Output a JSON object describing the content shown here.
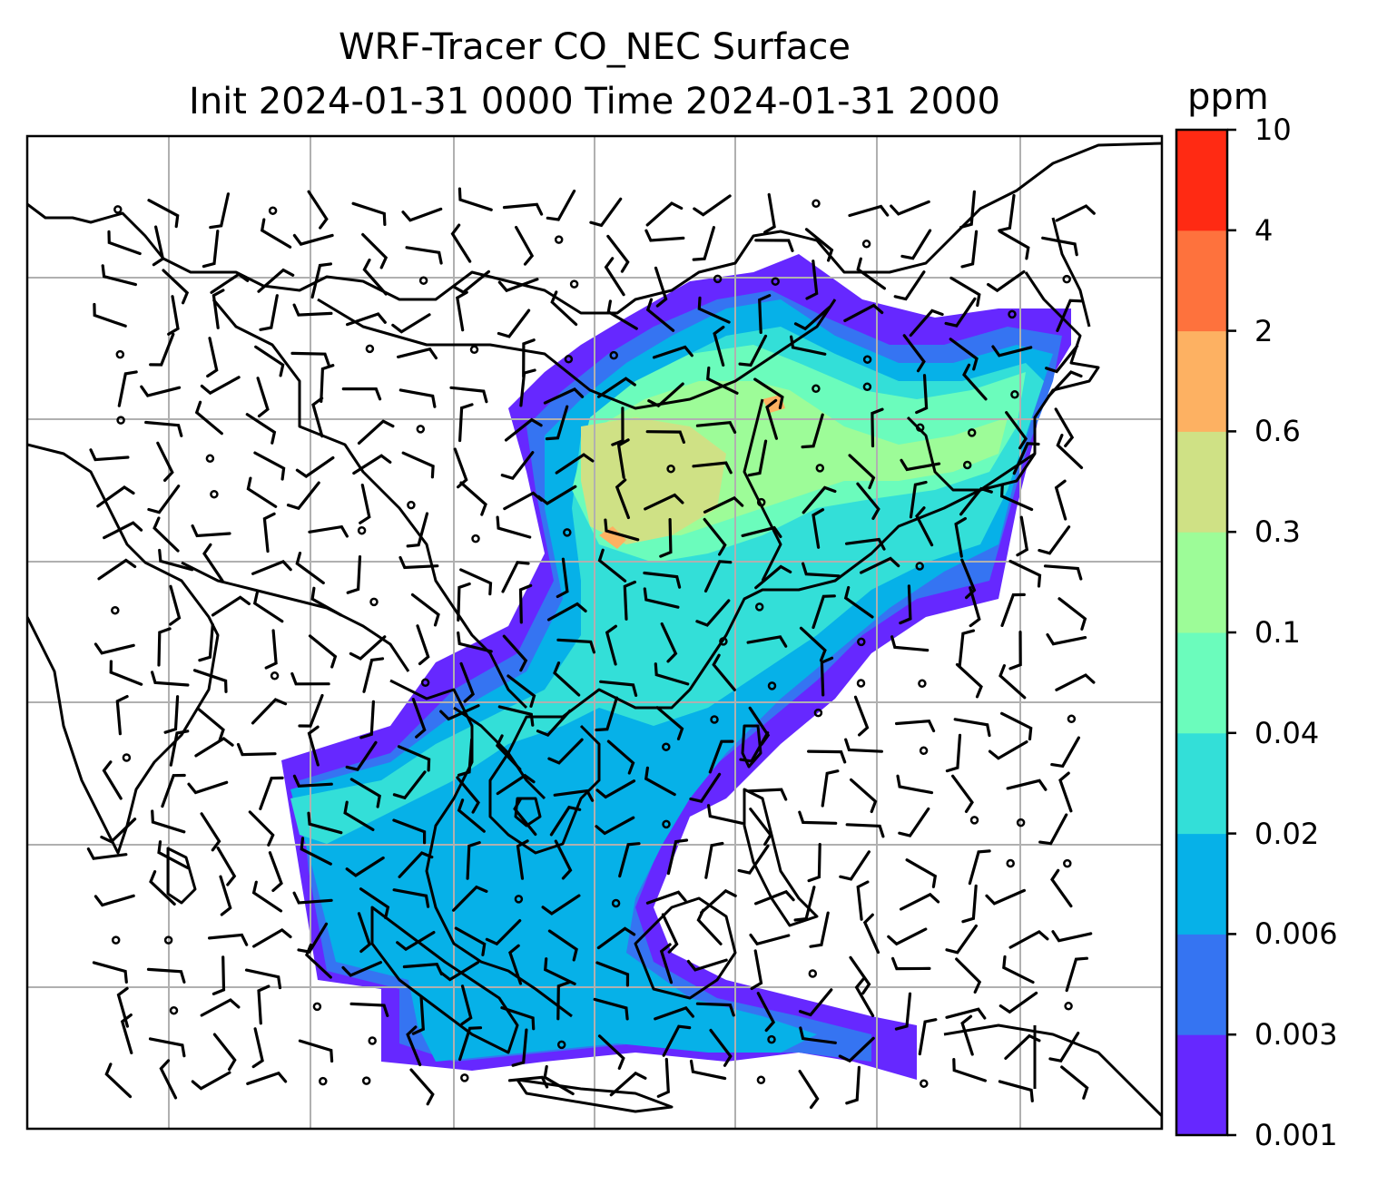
{
  "title": {
    "line1": "WRF-Tracer CO_NEC Surface",
    "line2": "Init 2024-01-31 0000 Time 2024-01-31 2000"
  },
  "colorbar": {
    "unit": "ppm",
    "levels": [
      "0.001",
      "0.003",
      "0.006",
      "0.02",
      "0.04",
      "0.1",
      "0.3",
      "0.6",
      "2",
      "4",
      "10"
    ],
    "colors": [
      "#6628ff",
      "#3574f2",
      "#06b1e8",
      "#33dfd8",
      "#6bfcbc",
      "#9dfc98",
      "#cfe185",
      "#fdb162",
      "#fe723d",
      "#ff2a13"
    ]
  },
  "map": {
    "projection": "lat-lon",
    "gridlines": true,
    "coastlines": true,
    "country_borders": true,
    "wind_barbs": true,
    "field": "CO_NEC surface concentration"
  }
}
